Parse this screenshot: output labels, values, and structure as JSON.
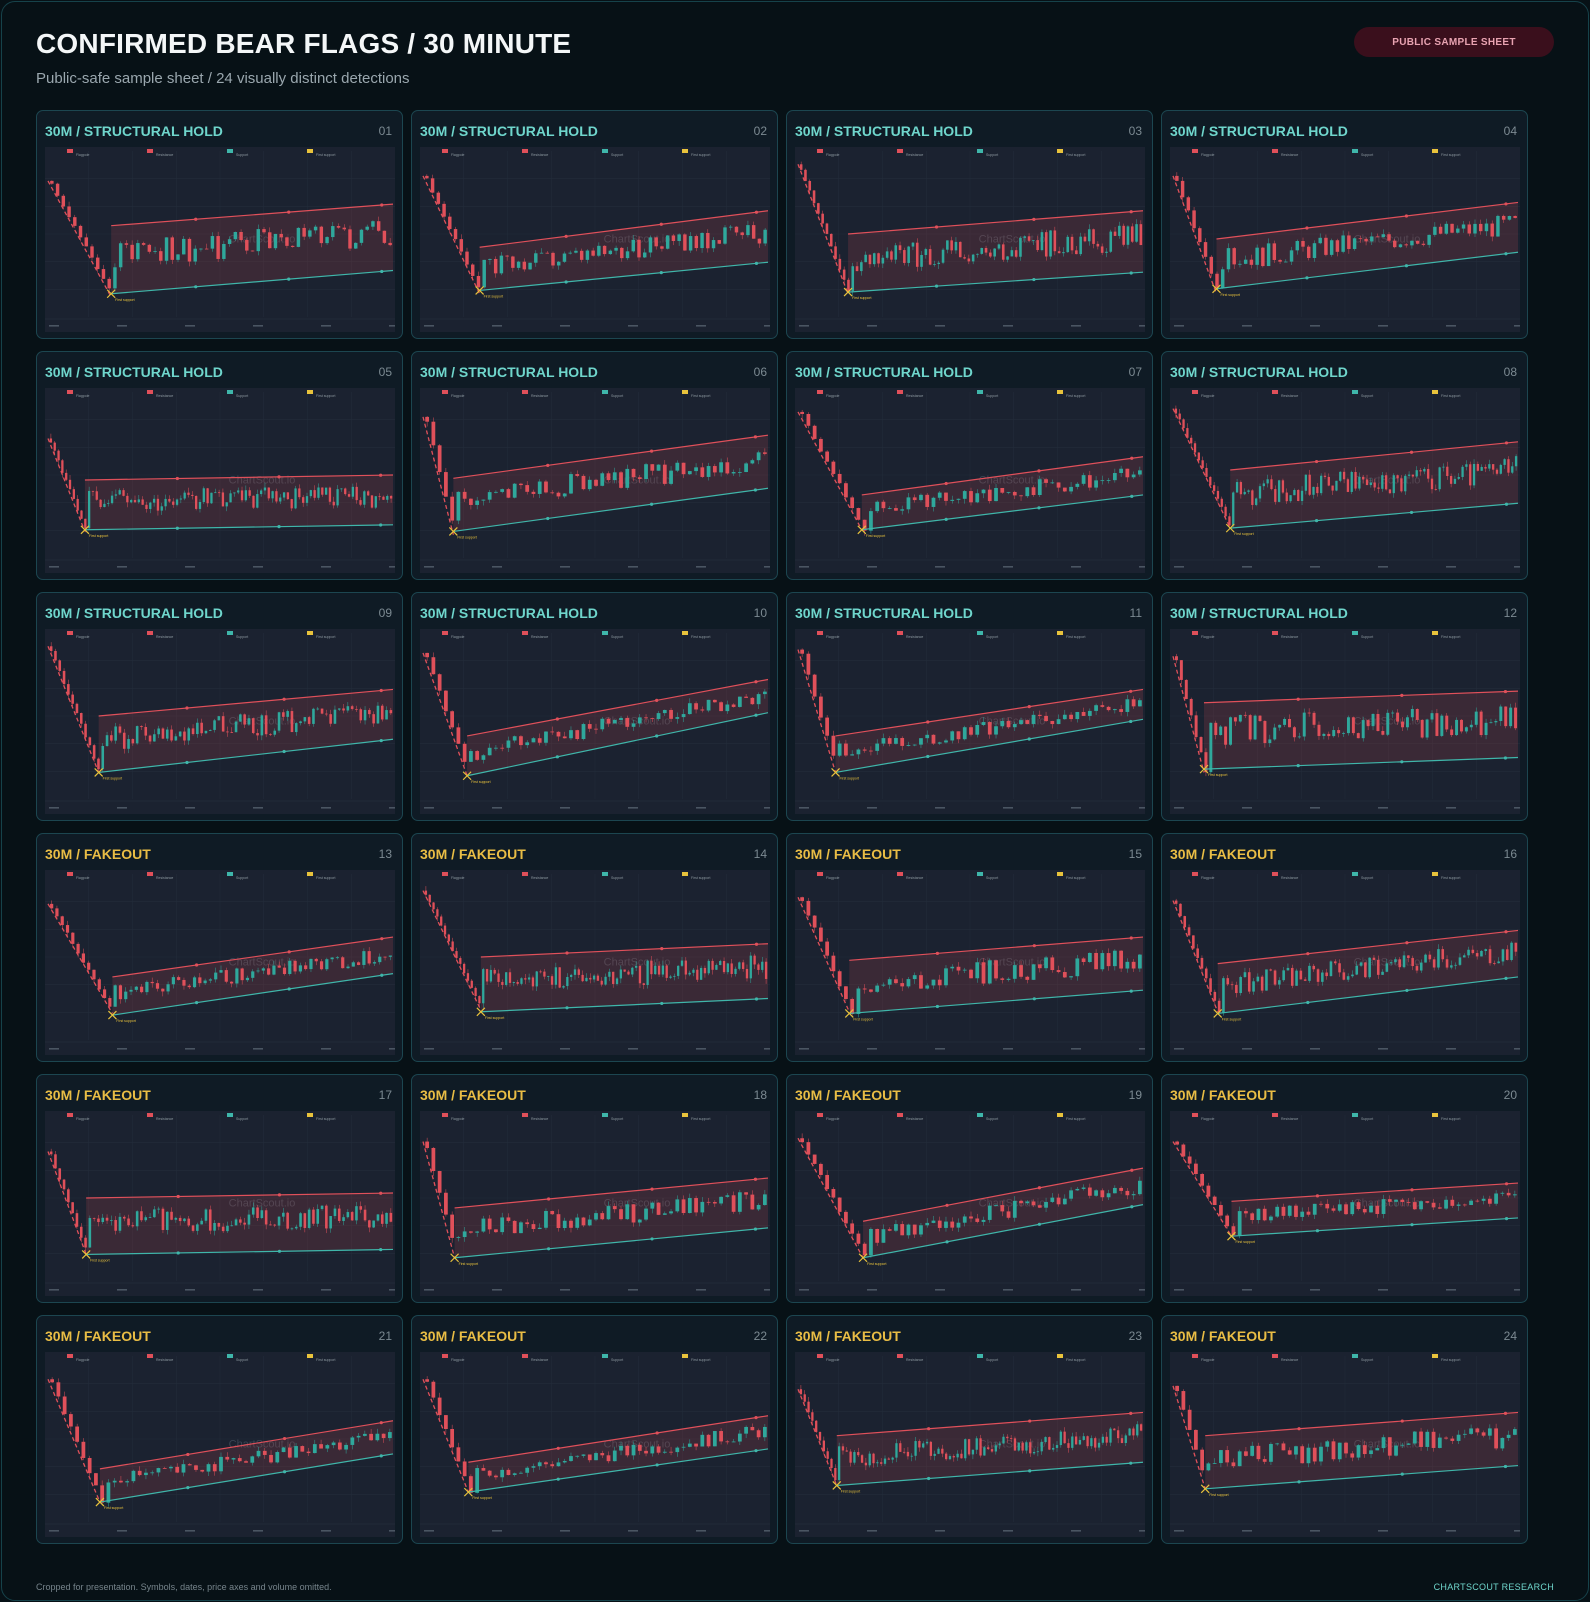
{
  "header": {
    "title": "CONFIRMED BEAR FLAGS / 30 MINUTE",
    "subtitle": "Public-safe sample sheet / 24 visually distinct detections",
    "badge": "PUBLIC SAMPLE SHEET"
  },
  "footer": {
    "note": "Cropped for presentation. Symbols, dates, price axes and volume omitted.",
    "brand": "CHARTSCOUT RESEARCH"
  },
  "colors": {
    "background": "#071116",
    "card": "#0f1b25",
    "plot": "#1b2230",
    "bull_candle": "#2fa89c",
    "bear_candle": "#e0505a",
    "resistance": "#e0505a",
    "support": "#3fb6aa",
    "first_support": "#e9c33c",
    "hold_label": "#6fd6cc",
    "fakeout_label": "#e9bd45"
  },
  "legend_labels": [
    "Flagpole",
    "Resistance",
    "Support",
    "First support"
  ],
  "first_support_label": "First support",
  "watermark": "ChartScout.io",
  "chart_data": [
    {
      "type": "candlestick",
      "label": "30M / STRUCTURAL HOLD",
      "number": "01",
      "category": "hold",
      "pole_start": 0.82,
      "pole_end": 0.12,
      "res_start": 0.55,
      "res_end": 0.68,
      "sup_start": 0.14,
      "sup_end": 0.28,
      "n": 60,
      "seed": 11
    },
    {
      "type": "candlestick",
      "label": "30M / STRUCTURAL HOLD",
      "number": "02",
      "category": "hold",
      "pole_start": 0.85,
      "pole_end": 0.14,
      "res_start": 0.42,
      "res_end": 0.64,
      "sup_start": 0.16,
      "sup_end": 0.33,
      "n": 60,
      "seed": 12
    },
    {
      "type": "candlestick",
      "label": "30M / STRUCTURAL HOLD",
      "number": "03",
      "category": "hold",
      "pole_start": 0.92,
      "pole_end": 0.14,
      "res_start": 0.5,
      "res_end": 0.64,
      "sup_start": 0.15,
      "sup_end": 0.27,
      "n": 80,
      "seed": 13
    },
    {
      "type": "candlestick",
      "label": "30M / STRUCTURAL HOLD",
      "number": "04",
      "category": "hold",
      "pole_start": 0.85,
      "pole_end": 0.14,
      "res_start": 0.47,
      "res_end": 0.69,
      "sup_start": 0.17,
      "sup_end": 0.39,
      "n": 60,
      "seed": 14
    },
    {
      "type": "candlestick",
      "label": "30M / STRUCTURAL HOLD",
      "number": "05",
      "category": "hold",
      "pole_start": 0.72,
      "pole_end": 0.16,
      "res_start": 0.47,
      "res_end": 0.5,
      "sup_start": 0.17,
      "sup_end": 0.2,
      "n": 90,
      "seed": 15
    },
    {
      "type": "candlestick",
      "label": "30M / STRUCTURAL HOLD",
      "number": "06",
      "category": "hold",
      "pole_start": 0.85,
      "pole_end": 0.14,
      "res_start": 0.48,
      "res_end": 0.74,
      "sup_start": 0.16,
      "sup_end": 0.42,
      "n": 55,
      "seed": 16
    },
    {
      "type": "candlestick",
      "label": "30M / STRUCTURAL HOLD",
      "number": "07",
      "category": "hold",
      "pole_start": 0.88,
      "pole_end": 0.17,
      "res_start": 0.38,
      "res_end": 0.61,
      "sup_start": 0.17,
      "sup_end": 0.38,
      "n": 55,
      "seed": 17
    },
    {
      "type": "candlestick",
      "label": "30M / STRUCTURAL HOLD",
      "number": "08",
      "category": "hold",
      "pole_start": 0.9,
      "pole_end": 0.18,
      "res_start": 0.53,
      "res_end": 0.7,
      "sup_start": 0.18,
      "sup_end": 0.33,
      "n": 90,
      "seed": 18
    },
    {
      "type": "candlestick",
      "label": "30M / STRUCTURAL HOLD",
      "number": "09",
      "category": "hold",
      "pole_start": 0.92,
      "pole_end": 0.16,
      "res_start": 0.5,
      "res_end": 0.66,
      "sup_start": 0.16,
      "sup_end": 0.36,
      "n": 80,
      "seed": 19
    },
    {
      "type": "candlestick",
      "label": "30M / STRUCTURAL HOLD",
      "number": "10",
      "category": "hold",
      "pole_start": 0.88,
      "pole_end": 0.14,
      "res_start": 0.38,
      "res_end": 0.72,
      "sup_start": 0.14,
      "sup_end": 0.52,
      "n": 55,
      "seed": 20
    },
    {
      "type": "candlestick",
      "label": "30M / STRUCTURAL HOLD",
      "number": "11",
      "category": "hold",
      "pole_start": 0.9,
      "pole_end": 0.16,
      "res_start": 0.38,
      "res_end": 0.66,
      "sup_start": 0.16,
      "sup_end": 0.48,
      "n": 55,
      "seed": 21
    },
    {
      "type": "candlestick",
      "label": "30M / STRUCTURAL HOLD",
      "number": "12",
      "category": "hold",
      "pole_start": 0.86,
      "pole_end": 0.16,
      "res_start": 0.58,
      "res_end": 0.65,
      "sup_start": 0.18,
      "sup_end": 0.25,
      "n": 70,
      "seed": 22
    },
    {
      "type": "candlestick",
      "label": "30M / FAKEOUT",
      "number": "13",
      "category": "fakeout",
      "pole_start": 0.82,
      "pole_end": 0.16,
      "res_start": 0.38,
      "res_end": 0.62,
      "sup_start": 0.15,
      "sup_end": 0.4,
      "n": 65,
      "seed": 23
    },
    {
      "type": "candlestick",
      "label": "30M / FAKEOUT",
      "number": "14",
      "category": "fakeout",
      "pole_start": 0.9,
      "pole_end": 0.18,
      "res_start": 0.5,
      "res_end": 0.58,
      "sup_start": 0.17,
      "sup_end": 0.25,
      "n": 90,
      "seed": 24
    },
    {
      "type": "candlestick",
      "label": "30M / FAKEOUT",
      "number": "15",
      "category": "fakeout",
      "pole_start": 0.86,
      "pole_end": 0.17,
      "res_start": 0.48,
      "res_end": 0.62,
      "sup_start": 0.16,
      "sup_end": 0.3,
      "n": 55,
      "seed": 25
    },
    {
      "type": "candlestick",
      "label": "30M / FAKEOUT",
      "number": "16",
      "category": "fakeout",
      "pole_start": 0.84,
      "pole_end": 0.17,
      "res_start": 0.46,
      "res_end": 0.66,
      "sup_start": 0.16,
      "sup_end": 0.38,
      "n": 80,
      "seed": 26
    },
    {
      "type": "candlestick",
      "label": "30M / FAKEOUT",
      "number": "17",
      "category": "fakeout",
      "pole_start": 0.78,
      "pole_end": 0.16,
      "res_start": 0.5,
      "res_end": 0.53,
      "sup_start": 0.16,
      "sup_end": 0.19,
      "n": 80,
      "seed": 27
    },
    {
      "type": "candlestick",
      "label": "30M / FAKEOUT",
      "number": "18",
      "category": "fakeout",
      "pole_start": 0.84,
      "pole_end": 0.14,
      "res_start": 0.44,
      "res_end": 0.62,
      "sup_start": 0.14,
      "sup_end": 0.32,
      "n": 55,
      "seed": 28
    },
    {
      "type": "candlestick",
      "label": "30M / FAKEOUT",
      "number": "19",
      "category": "fakeout",
      "pole_start": 0.86,
      "pole_end": 0.14,
      "res_start": 0.36,
      "res_end": 0.68,
      "sup_start": 0.14,
      "sup_end": 0.46,
      "n": 55,
      "seed": 29
    },
    {
      "type": "candlestick",
      "label": "30M / FAKEOUT",
      "number": "20",
      "category": "fakeout",
      "pole_start": 0.84,
      "pole_end": 0.27,
      "res_start": 0.48,
      "res_end": 0.59,
      "sup_start": 0.27,
      "sup_end": 0.38,
      "n": 55,
      "seed": 30
    },
    {
      "type": "candlestick",
      "label": "30M / FAKEOUT",
      "number": "21",
      "category": "fakeout",
      "pole_start": 0.86,
      "pole_end": 0.12,
      "res_start": 0.32,
      "res_end": 0.61,
      "sup_start": 0.12,
      "sup_end": 0.41,
      "n": 55,
      "seed": 31
    },
    {
      "type": "candlestick",
      "label": "30M / FAKEOUT",
      "number": "22",
      "category": "fakeout",
      "pole_start": 0.86,
      "pole_end": 0.18,
      "res_start": 0.36,
      "res_end": 0.64,
      "sup_start": 0.18,
      "sup_end": 0.44,
      "n": 55,
      "seed": 32
    },
    {
      "type": "candlestick",
      "label": "30M / FAKEOUT",
      "number": "23",
      "category": "fakeout",
      "pole_start": 0.8,
      "pole_end": 0.22,
      "res_start": 0.52,
      "res_end": 0.66,
      "sup_start": 0.22,
      "sup_end": 0.36,
      "n": 90,
      "seed": 33
    },
    {
      "type": "candlestick",
      "label": "30M / FAKEOUT",
      "number": "24",
      "category": "fakeout",
      "pole_start": 0.82,
      "pole_end": 0.2,
      "res_start": 0.52,
      "res_end": 0.66,
      "sup_start": 0.2,
      "sup_end": 0.34,
      "n": 55,
      "seed": 34
    }
  ]
}
